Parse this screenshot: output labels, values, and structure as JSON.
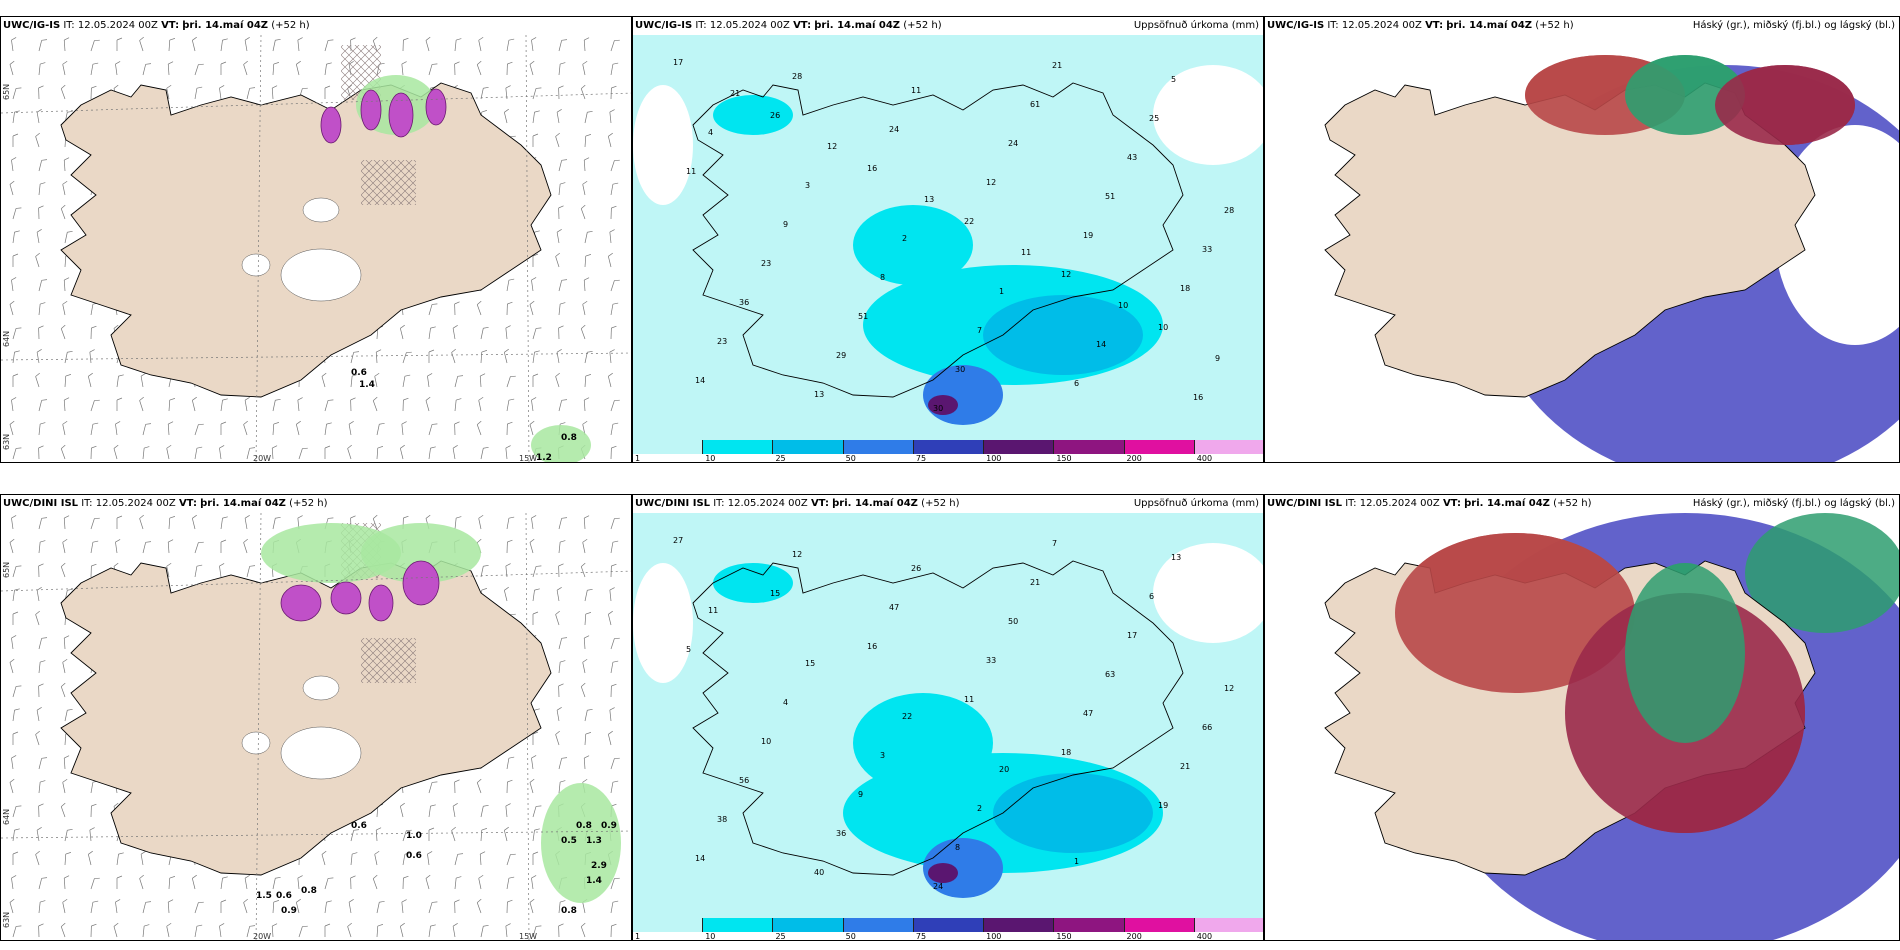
{
  "panels": [
    {
      "id": "p1",
      "model": "UWC/IG-IS",
      "it_label": "IT:",
      "it": "12.05.2024 00Z",
      "vt_label": "VT:",
      "vt": "þri. 14.maí 04Z",
      "lead": "(+52 h)",
      "right": ""
    },
    {
      "id": "p2",
      "model": "UWC/IG-IS",
      "it_label": "IT:",
      "it": "12.05.2024 00Z",
      "vt_label": "VT:",
      "vt": "þri. 14.maí 04Z",
      "lead": "(+52 h)",
      "right": "Uppsöfnuð úrkoma (mm)"
    },
    {
      "id": "p3",
      "model": "UWC/IG-IS",
      "it_label": "IT:",
      "it": "12.05.2024 00Z",
      "vt_label": "VT:",
      "vt": "þri. 14.maí 04Z",
      "lead": "(+52 h)",
      "right": "Háský (gr.), miðský (fj.bl.) og lágský (bl.)"
    },
    {
      "id": "p4",
      "model": "UWC/DINI ISL",
      "it_label": "IT:",
      "it": "12.05.2024 00Z",
      "vt_label": "VT:",
      "vt": "þri. 14.maí 04Z",
      "lead": "(+52 h)",
      "right": ""
    },
    {
      "id": "p5",
      "model": "UWC/DINI ISL",
      "it_label": "IT:",
      "it": "12.05.2024 00Z",
      "vt_label": "VT:",
      "vt": "þri. 14.maí 04Z",
      "lead": "(+52 h)",
      "right": "Uppsöfnuð úrkoma (mm)"
    },
    {
      "id": "p6",
      "model": "UWC/DINI ISL",
      "it_label": "IT:",
      "it": "12.05.2024 00Z",
      "vt_label": "VT:",
      "vt": "þri. 14.maí 04Z",
      "lead": "(+52 h)",
      "right": "Háský (gr.), miðský (fj.bl.) og lágský (bl.)"
    }
  ],
  "colorbar": {
    "labels": [
      "1",
      "10",
      "25",
      "50",
      "75",
      "100",
      "150",
      "200",
      "400"
    ],
    "colors": [
      "#bff6f6",
      "#00e5f0",
      "#00bde8",
      "#2f7ce8",
      "#2f3fb8",
      "#5a1670",
      "#8e1580",
      "#e010a0",
      "#f0a8ec"
    ]
  },
  "axes": {
    "lon_labels": [
      "20W",
      "15W"
    ],
    "lat_labels": [
      "65N",
      "64N",
      "63N"
    ]
  },
  "precip_values": {
    "p2": [
      "17",
      "26",
      "16",
      "22",
      "12",
      "10",
      "14",
      "28",
      "24",
      "12",
      "19",
      "18",
      "23",
      "13",
      "11",
      "24",
      "51",
      "33",
      "36",
      "29",
      "30",
      "61",
      "43",
      "28",
      "23",
      "51",
      "30",
      "21",
      "25",
      "11",
      "9",
      "8",
      "7",
      "6",
      "5",
      "4",
      "3",
      "2",
      "1",
      "14",
      "16",
      "21",
      "12",
      "13",
      "11",
      "10",
      "9"
    ],
    "p5": [
      "27",
      "15",
      "16",
      "11",
      "18",
      "19",
      "14",
      "12",
      "47",
      "33",
      "47",
      "21",
      "38",
      "40",
      "26",
      "50",
      "63",
      "66",
      "56",
      "36",
      "24",
      "21",
      "17",
      "12",
      "10",
      "9",
      "8",
      "7",
      "6",
      "5",
      "4",
      "3",
      "2",
      "1",
      "13",
      "11",
      "15",
      "22",
      "20"
    ]
  },
  "wind_values": {
    "p1": [
      "0.8",
      "1.2",
      "0.6",
      "1.4"
    ],
    "p4": [
      "0.6",
      "1.0",
      "0.6",
      "1.5",
      "0.6",
      "0.8",
      "0.9",
      "0.8",
      "0.5",
      "1.3",
      "2.9",
      "0.9",
      "1.4",
      "0.8"
    ]
  }
}
